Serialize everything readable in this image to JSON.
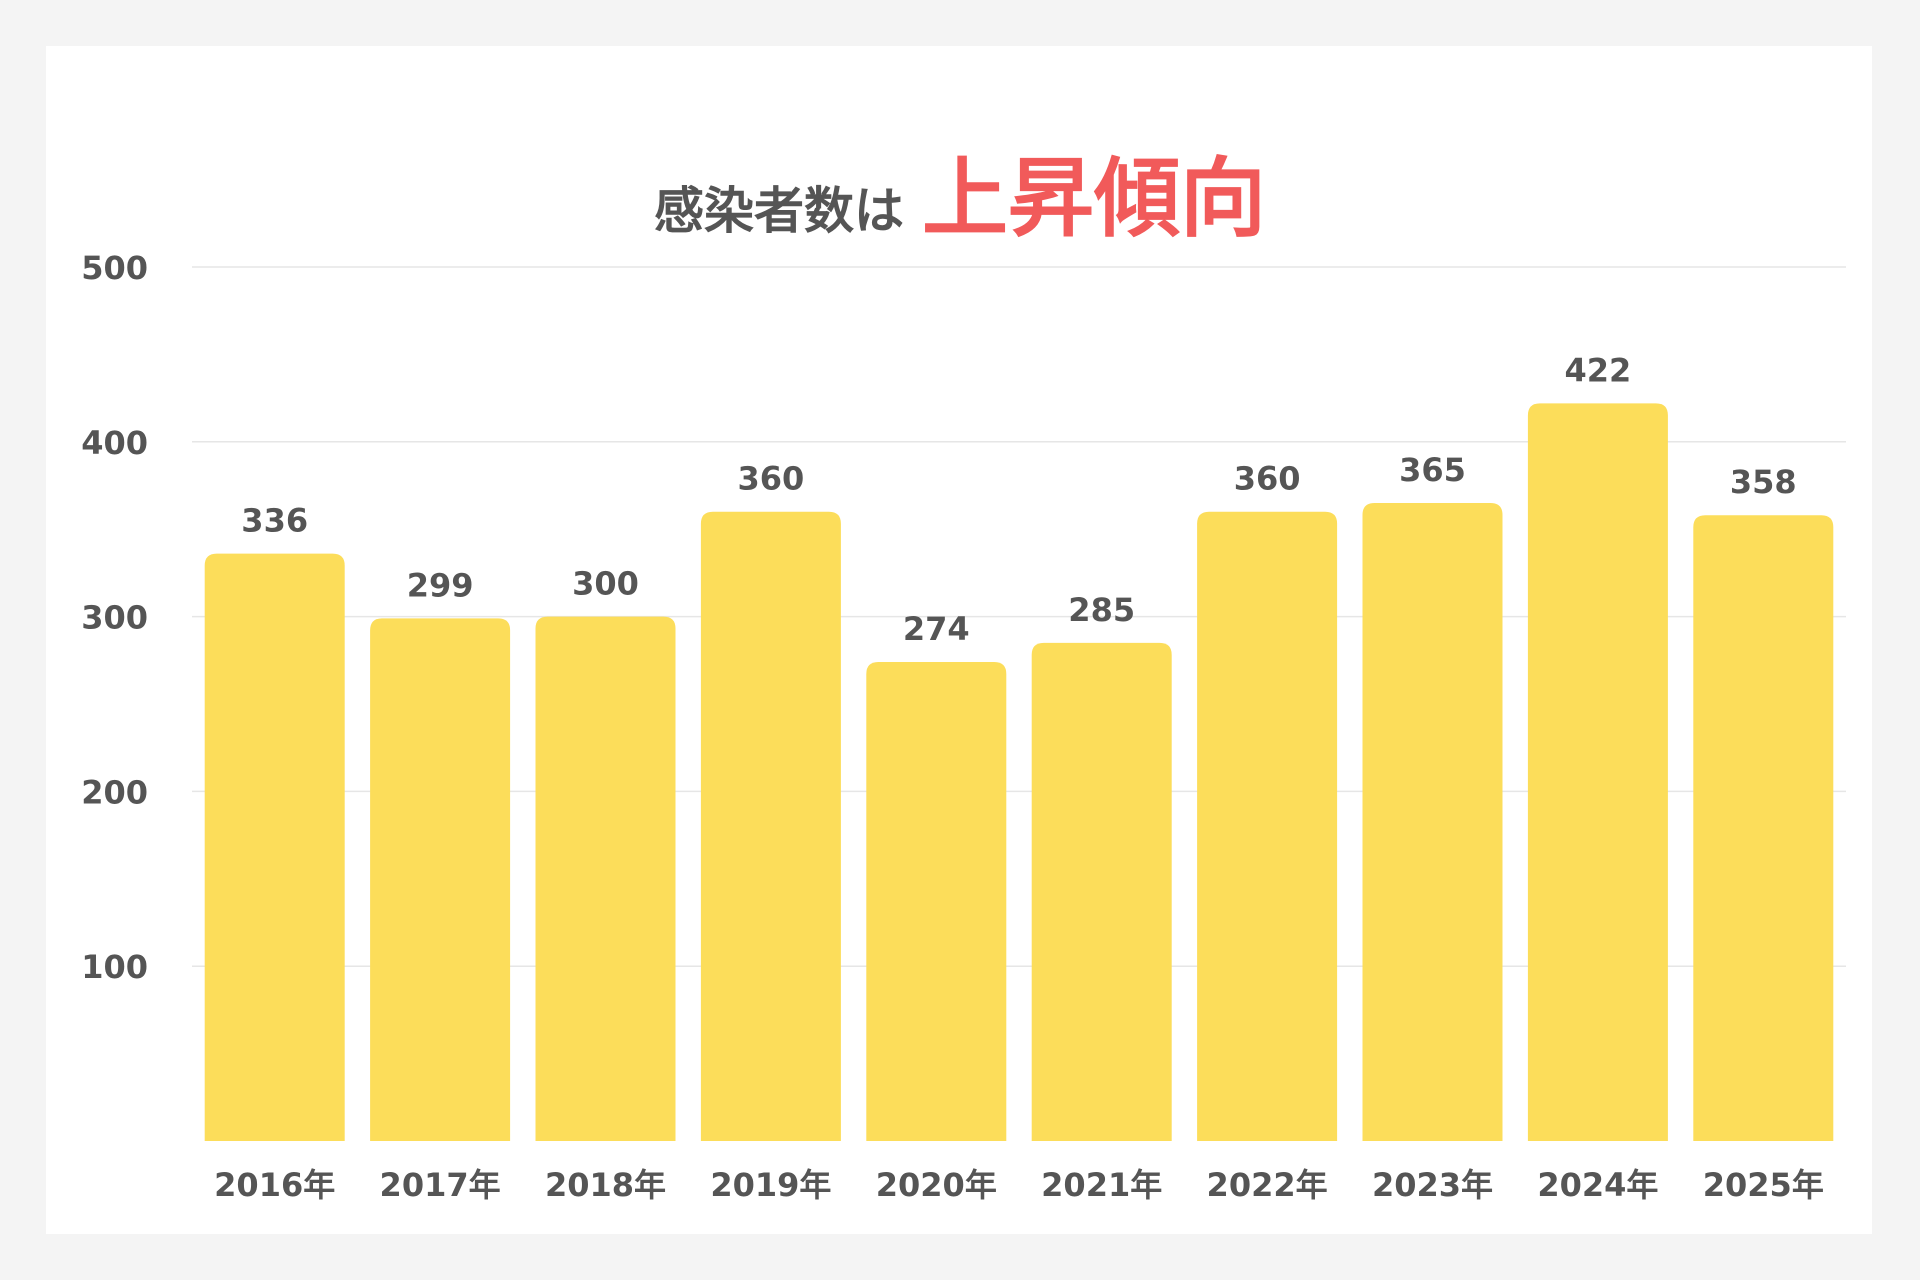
{
  "title": {
    "main": "感染者数は",
    "accent": "上昇傾向"
  },
  "colors": {
    "bar": "#fcdd5a",
    "accent": "#f15a5a",
    "text": "#555555",
    "grid": "#e6e6e6",
    "card": "#ffffff",
    "background": "#f4f4f4"
  },
  "chart_data": {
    "type": "bar",
    "categories": [
      "2016年",
      "2017年",
      "2018年",
      "2019年",
      "2020年",
      "2021年",
      "2022年",
      "2023年",
      "2024年",
      "2025年"
    ],
    "values": [
      336,
      299,
      300,
      360,
      274,
      285,
      360,
      365,
      422,
      358
    ],
    "data_labels": [
      "336",
      "299",
      "300",
      "360",
      "274",
      "285",
      "360",
      "365",
      "422",
      "358"
    ],
    "yticks": [
      100,
      200,
      300,
      400,
      500
    ],
    "ylim": [
      0,
      500
    ],
    "grid": true,
    "xlabel": "",
    "ylabel": ""
  }
}
